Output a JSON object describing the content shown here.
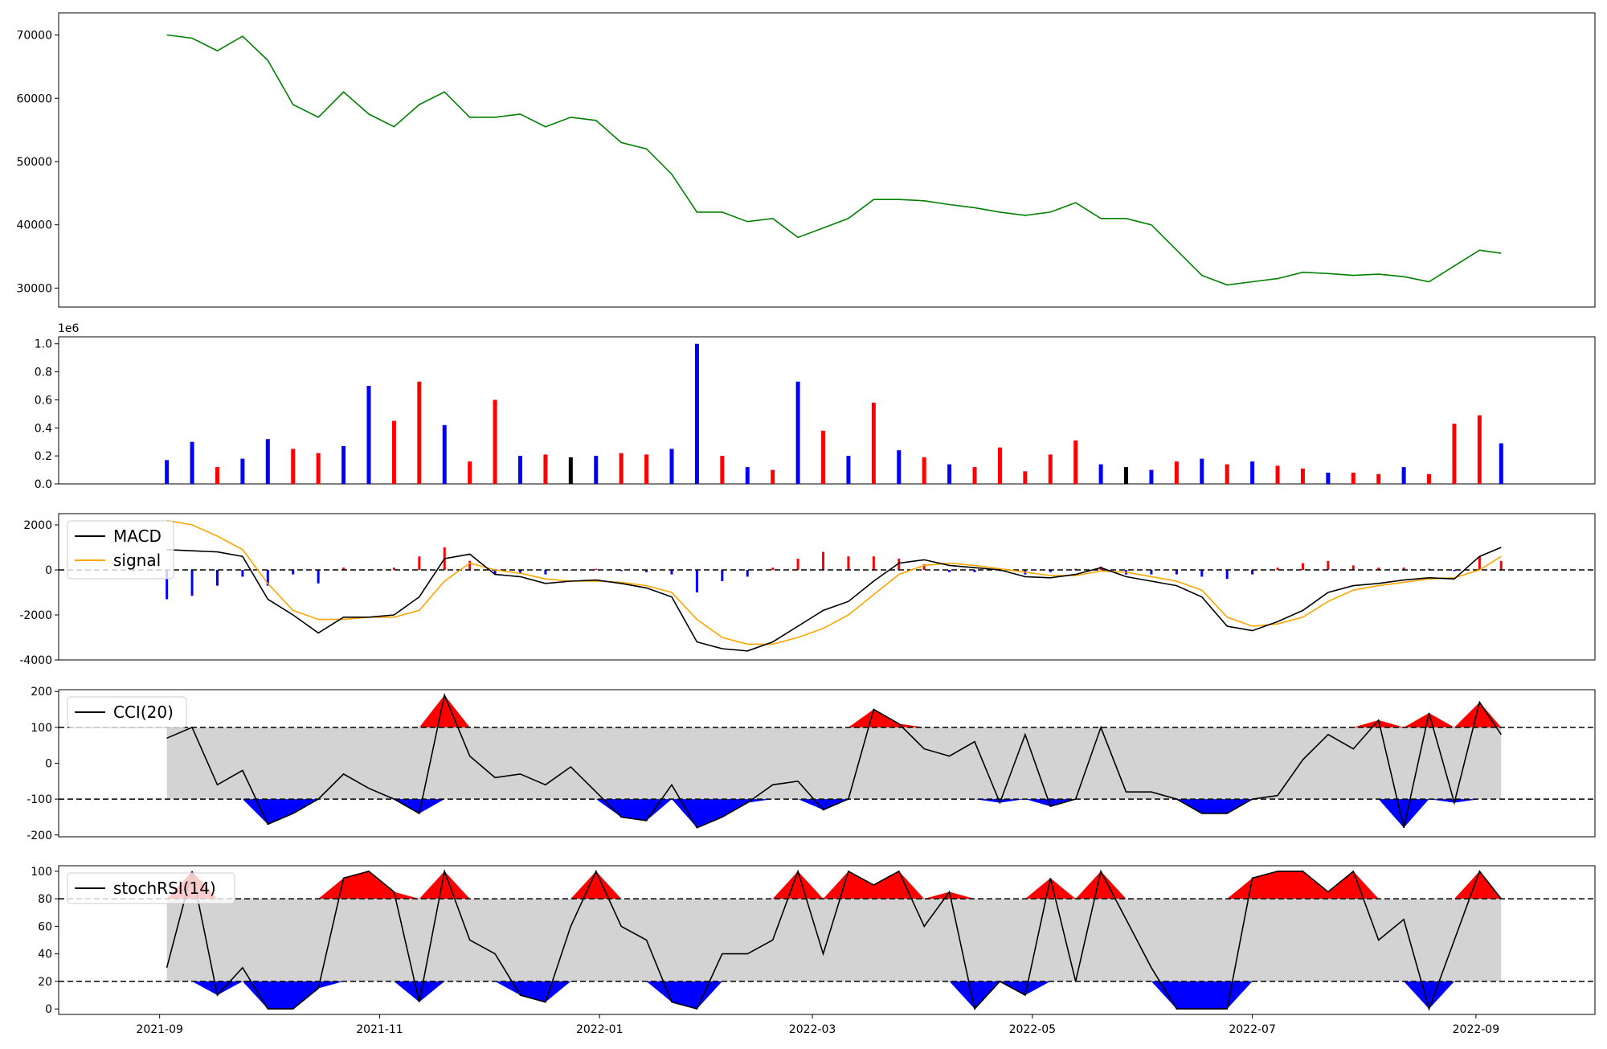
{
  "chart_data": [
    {
      "type": "line",
      "panel": "price",
      "color": "#008000",
      "ylim": [
        27000,
        73500
      ],
      "yticks": [
        "30000",
        "40000",
        "50000",
        "60000",
        "70000"
      ],
      "x": [
        "2021-09-03",
        "2021-09-10",
        "2021-09-17",
        "2021-09-24",
        "2021-10-01",
        "2021-10-08",
        "2021-10-15",
        "2021-10-22",
        "2021-10-29",
        "2021-11-05",
        "2021-11-12",
        "2021-11-19",
        "2021-11-26",
        "2021-12-03",
        "2021-12-10",
        "2021-12-17",
        "2021-12-24",
        "2021-12-31",
        "2022-01-07",
        "2022-01-14",
        "2022-01-21",
        "2022-01-28",
        "2022-02-04",
        "2022-02-11",
        "2022-02-18",
        "2022-02-25",
        "2022-03-04",
        "2022-03-11",
        "2022-03-18",
        "2022-03-25",
        "2022-04-01",
        "2022-04-08",
        "2022-04-15",
        "2022-04-22",
        "2022-04-29",
        "2022-05-06",
        "2022-05-13",
        "2022-05-20",
        "2022-05-27",
        "2022-06-03",
        "2022-06-10",
        "2022-06-17",
        "2022-06-24",
        "2022-07-01",
        "2022-07-08",
        "2022-07-15",
        "2022-07-22",
        "2022-07-29",
        "2022-08-05",
        "2022-08-12",
        "2022-08-19",
        "2022-08-26",
        "2022-09-02",
        "2022-09-08"
      ],
      "values": [
        70000,
        69500,
        67500,
        69800,
        66000,
        59000,
        57000,
        61000,
        57500,
        55500,
        59000,
        61000,
        57000,
        57000,
        57500,
        55500,
        57000,
        56500,
        53000,
        52000,
        48000,
        42000,
        42000,
        40500,
        41000,
        38000,
        39500,
        41000,
        44000,
        44000,
        43800,
        43200,
        42700,
        42000,
        41500,
        42000,
        43500,
        41000,
        41000,
        40000,
        36000,
        32000,
        30500,
        31000,
        31500,
        32500,
        32300,
        32000,
        32200,
        31800,
        31000,
        33500,
        36000,
        35500
      ]
    },
    {
      "type": "bar",
      "panel": "volume",
      "axis_multiplier": "1e6",
      "ylim": [
        0,
        1.05
      ],
      "yticks": [
        "0.0",
        "0.2",
        "0.4",
        "0.6",
        "0.8",
        "1.0"
      ],
      "colors": {
        "up": "#ff0000",
        "down": "#0000ff",
        "flat": "#000000"
      },
      "x": [
        "2021-09-03",
        "2021-09-10",
        "2021-09-17",
        "2021-09-24",
        "2021-10-01",
        "2021-10-08",
        "2021-10-15",
        "2021-10-22",
        "2021-10-29",
        "2021-11-05",
        "2021-11-12",
        "2021-11-19",
        "2021-11-26",
        "2021-12-03",
        "2021-12-10",
        "2021-12-17",
        "2021-12-24",
        "2021-12-31",
        "2022-01-07",
        "2022-01-14",
        "2022-01-21",
        "2022-01-28",
        "2022-02-04",
        "2022-02-11",
        "2022-02-18",
        "2022-02-25",
        "2022-03-04",
        "2022-03-11",
        "2022-03-18",
        "2022-03-25",
        "2022-04-01",
        "2022-04-08",
        "2022-04-15",
        "2022-04-22",
        "2022-04-29",
        "2022-05-06",
        "2022-05-13",
        "2022-05-20",
        "2022-05-27",
        "2022-06-03",
        "2022-06-10",
        "2022-06-17",
        "2022-06-24",
        "2022-07-01",
        "2022-07-08",
        "2022-07-15",
        "2022-07-22",
        "2022-07-29",
        "2022-08-05",
        "2022-08-12",
        "2022-08-19",
        "2022-08-26",
        "2022-09-02",
        "2022-09-08"
      ],
      "values": [
        0.17,
        0.3,
        0.12,
        0.18,
        0.32,
        0.25,
        0.22,
        0.27,
        0.7,
        0.45,
        0.73,
        0.42,
        0.16,
        0.6,
        0.2,
        0.21,
        0.19,
        0.2,
        0.22,
        0.21,
        0.25,
        1.0,
        0.2,
        0.12,
        0.1,
        0.73,
        0.38,
        0.2,
        0.58,
        0.24,
        0.19,
        0.14,
        0.12,
        0.26,
        0.09,
        0.21,
        0.31,
        0.14,
        0.12,
        0.1,
        0.16,
        0.18,
        0.14,
        0.16,
        0.13,
        0.11,
        0.08,
        0.08,
        0.07,
        0.12,
        0.07,
        0.43,
        0.49,
        0.29
      ],
      "direction": [
        "down",
        "down",
        "up",
        "down",
        "down",
        "up",
        "up",
        "down",
        "down",
        "up",
        "up",
        "down",
        "up",
        "up",
        "down",
        "up",
        "flat",
        "down",
        "up",
        "up",
        "down",
        "down",
        "up",
        "down",
        "up",
        "down",
        "up",
        "down",
        "up",
        "down",
        "up",
        "down",
        "up",
        "up",
        "up",
        "up",
        "up",
        "down",
        "flat",
        "down",
        "up",
        "down",
        "up",
        "down",
        "up",
        "up",
        "down",
        "up",
        "up",
        "down",
        "up",
        "up",
        "up",
        "down"
      ]
    },
    {
      "type": "line",
      "panel": "macd",
      "ylim": [
        -4000,
        2500
      ],
      "yticks": [
        "-4000",
        "-2000",
        "0",
        "2000"
      ],
      "series": [
        {
          "name": "MACD",
          "color": "#000000"
        },
        {
          "name": "signal",
          "color": "#ffa500"
        }
      ],
      "histogram_colors": {
        "positive": "#ff0000",
        "negative": "#0000ff"
      },
      "x": [
        "2021-09-03",
        "2021-09-10",
        "2021-09-17",
        "2021-09-24",
        "2021-10-01",
        "2021-10-08",
        "2021-10-15",
        "2021-10-22",
        "2021-10-29",
        "2021-11-05",
        "2021-11-12",
        "2021-11-19",
        "2021-11-26",
        "2021-12-03",
        "2021-12-10",
        "2021-12-17",
        "2021-12-24",
        "2021-12-31",
        "2022-01-07",
        "2022-01-14",
        "2022-01-21",
        "2022-01-28",
        "2022-02-04",
        "2022-02-11",
        "2022-02-18",
        "2022-02-25",
        "2022-03-04",
        "2022-03-11",
        "2022-03-18",
        "2022-03-25",
        "2022-04-01",
        "2022-04-08",
        "2022-04-15",
        "2022-04-22",
        "2022-04-29",
        "2022-05-06",
        "2022-05-13",
        "2022-05-20",
        "2022-05-27",
        "2022-06-03",
        "2022-06-10",
        "2022-06-17",
        "2022-06-24",
        "2022-07-01",
        "2022-07-08",
        "2022-07-15",
        "2022-07-22",
        "2022-07-29",
        "2022-08-05",
        "2022-08-12",
        "2022-08-19",
        "2022-08-26",
        "2022-09-02",
        "2022-09-08"
      ],
      "macd": [
        900,
        850,
        800,
        600,
        -1300,
        -2000,
        -2800,
        -2100,
        -2100,
        -2000,
        -1200,
        500,
        700,
        -200,
        -300,
        -600,
        -500,
        -450,
        -600,
        -800,
        -1200,
        -3200,
        -3500,
        -3600,
        -3200,
        -2500,
        -1800,
        -1400,
        -500,
        300,
        450,
        200,
        100,
        0,
        -300,
        -350,
        -200,
        100,
        -300,
        -500,
        -700,
        -1200,
        -2500,
        -2700,
        -2300,
        -1800,
        -1000,
        -700,
        -600,
        -450,
        -350,
        -400,
        600,
        1000
      ],
      "signal": [
        2200,
        2000,
        1500,
        900,
        -600,
        -1800,
        -2200,
        -2200,
        -2100,
        -2100,
        -1800,
        -500,
        300,
        0,
        -150,
        -400,
        -500,
        -500,
        -550,
        -700,
        -1000,
        -2200,
        -3000,
        -3300,
        -3300,
        -3000,
        -2600,
        -2000,
        -1100,
        -200,
        200,
        300,
        200,
        50,
        -100,
        -250,
        -250,
        -50,
        -100,
        -300,
        -500,
        -900,
        -2100,
        -2500,
        -2400,
        -2100,
        -1400,
        -900,
        -700,
        -550,
        -400,
        -350,
        0,
        600
      ]
    },
    {
      "type": "area",
      "panel": "cci",
      "ylim": [
        -205,
        205
      ],
      "yticks": [
        "-200",
        "-100",
        "0",
        "100",
        "200"
      ],
      "thresholds": [
        -100,
        100
      ],
      "band_color": "#d3d3d3",
      "fill_colors": {
        "above": "#ff0000",
        "below": "#0000ff"
      },
      "series": [
        {
          "name": "CCI(20)",
          "color": "#000000"
        }
      ],
      "x": [
        "2021-09-03",
        "2021-09-10",
        "2021-09-17",
        "2021-09-24",
        "2021-10-01",
        "2021-10-08",
        "2021-10-15",
        "2021-10-22",
        "2021-10-29",
        "2021-11-05",
        "2021-11-12",
        "2021-11-19",
        "2021-11-26",
        "2021-12-03",
        "2021-12-10",
        "2021-12-17",
        "2021-12-24",
        "2021-12-31",
        "2022-01-07",
        "2022-01-14",
        "2022-01-21",
        "2022-01-28",
        "2022-02-04",
        "2022-02-11",
        "2022-02-18",
        "2022-02-25",
        "2022-03-04",
        "2022-03-11",
        "2022-03-18",
        "2022-03-25",
        "2022-04-01",
        "2022-04-08",
        "2022-04-15",
        "2022-04-22",
        "2022-04-29",
        "2022-05-06",
        "2022-05-13",
        "2022-05-20",
        "2022-05-27",
        "2022-06-03",
        "2022-06-10",
        "2022-06-17",
        "2022-06-24",
        "2022-07-01",
        "2022-07-08",
        "2022-07-15",
        "2022-07-22",
        "2022-07-29",
        "2022-08-05",
        "2022-08-12",
        "2022-08-19",
        "2022-08-26",
        "2022-09-02",
        "2022-09-08"
      ],
      "values": [
        70,
        100,
        -60,
        -20,
        -170,
        -140,
        -100,
        -30,
        -70,
        -100,
        -140,
        190,
        20,
        -40,
        -30,
        -60,
        -10,
        -80,
        -150,
        -160,
        -60,
        -180,
        -150,
        -110,
        -60,
        -50,
        -130,
        -100,
        150,
        110,
        40,
        20,
        60,
        -110,
        80,
        -120,
        -100,
        100,
        -80,
        -80,
        -100,
        -140,
        -140,
        -100,
        -90,
        10,
        80,
        40,
        120,
        -180,
        140,
        -110,
        170,
        80
      ]
    },
    {
      "type": "area",
      "panel": "stochrsi",
      "ylim": [
        -4,
        104
      ],
      "yticks": [
        "0",
        "20",
        "40",
        "60",
        "80",
        "100"
      ],
      "thresholds": [
        20,
        80
      ],
      "band_color": "#d3d3d3",
      "fill_colors": {
        "above": "#ff0000",
        "below": "#0000ff"
      },
      "series": [
        {
          "name": "stochRSI(14)",
          "color": "#000000"
        }
      ],
      "x": [
        "2021-09-03",
        "2021-09-10",
        "2021-09-17",
        "2021-09-24",
        "2021-10-01",
        "2021-10-08",
        "2021-10-15",
        "2021-10-22",
        "2021-10-29",
        "2021-11-05",
        "2021-11-12",
        "2021-11-19",
        "2021-11-26",
        "2021-12-03",
        "2021-12-10",
        "2021-12-17",
        "2021-12-24",
        "2021-12-31",
        "2022-01-07",
        "2022-01-14",
        "2022-01-21",
        "2022-01-28",
        "2022-02-04",
        "2022-02-11",
        "2022-02-18",
        "2022-02-25",
        "2022-03-04",
        "2022-03-11",
        "2022-03-18",
        "2022-03-25",
        "2022-04-01",
        "2022-04-08",
        "2022-04-15",
        "2022-04-22",
        "2022-04-29",
        "2022-05-06",
        "2022-05-13",
        "2022-05-20",
        "2022-05-27",
        "2022-06-03",
        "2022-06-10",
        "2022-06-17",
        "2022-06-24",
        "2022-07-01",
        "2022-07-08",
        "2022-07-15",
        "2022-07-22",
        "2022-07-29",
        "2022-08-05",
        "2022-08-12",
        "2022-08-19",
        "2022-08-26",
        "2022-09-02",
        "2022-09-08"
      ],
      "values": [
        30,
        100,
        10,
        30,
        0,
        0,
        15,
        95,
        100,
        85,
        5,
        100,
        50,
        40,
        10,
        5,
        60,
        100,
        60,
        50,
        5,
        0,
        40,
        40,
        50,
        100,
        40,
        100,
        90,
        100,
        60,
        85,
        0,
        20,
        10,
        95,
        20,
        100,
        65,
        30,
        0,
        0,
        0,
        95,
        100,
        100,
        85,
        100,
        50,
        65,
        0,
        50,
        100,
        80
      ]
    }
  ],
  "x_axis": {
    "tick_labels": [
      "2021-09",
      "2021-11",
      "2022-01",
      "2022-03",
      "2022-05",
      "2022-07",
      "2022-09"
    ],
    "tick_dates": [
      "2021-09-01",
      "2021-11-01",
      "2022-01-01",
      "2022-03-01",
      "2022-05-01",
      "2022-07-01",
      "2022-09-01"
    ]
  }
}
